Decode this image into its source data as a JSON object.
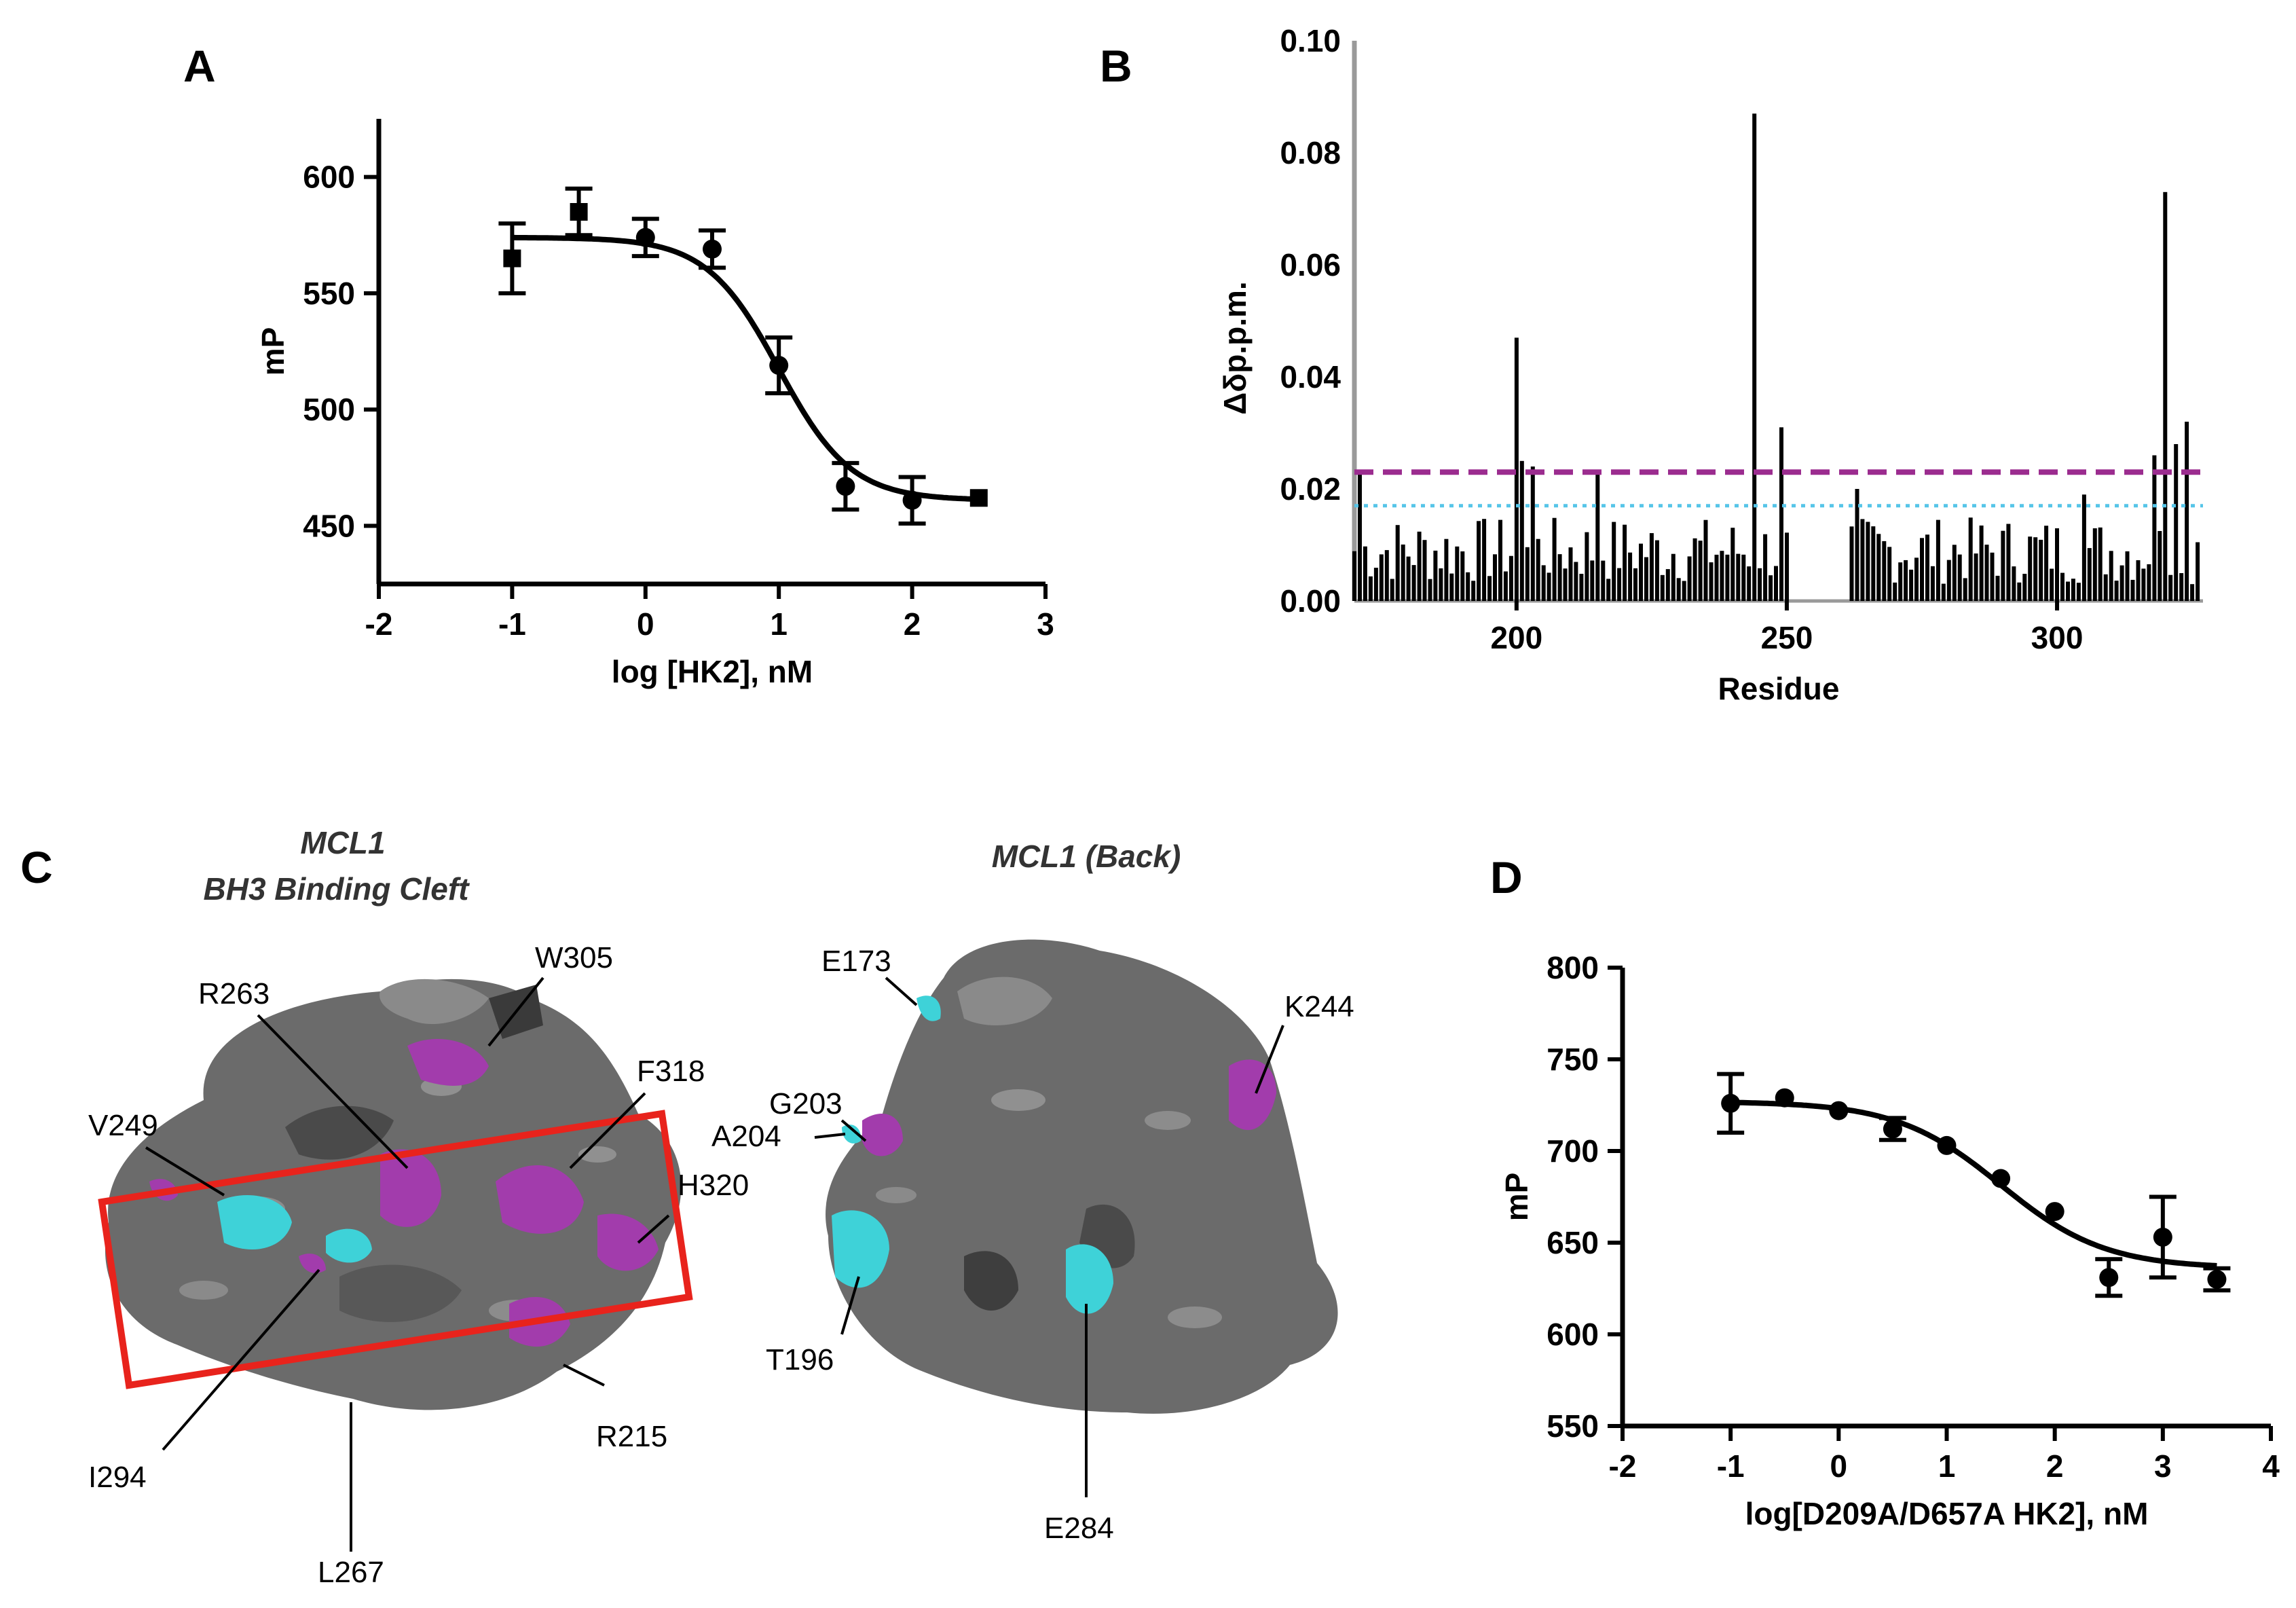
{
  "panels": {
    "A": "A",
    "B": "B",
    "C": "C",
    "D": "D"
  },
  "chart_data": [
    {
      "id": "A",
      "type": "scatter",
      "xlabel": "log [HK2], nM",
      "ylabel": "mP",
      "xlim": [
        -2,
        3
      ],
      "ylim": [
        425,
        625
      ],
      "xticks": [
        -2,
        -1,
        0,
        1,
        2,
        3
      ],
      "yticks": [
        450,
        500,
        550,
        600
      ],
      "points": [
        {
          "x": -1,
          "y": 565,
          "err": 15,
          "marker": "square"
        },
        {
          "x": -0.5,
          "y": 585,
          "err": 10,
          "marker": "square"
        },
        {
          "x": 0,
          "y": 574,
          "err": 8,
          "marker": "circle"
        },
        {
          "x": 0.5,
          "y": 569,
          "err": 8,
          "marker": "circle"
        },
        {
          "x": 1,
          "y": 519,
          "err": 12,
          "marker": "circle"
        },
        {
          "x": 1.5,
          "y": 467,
          "err": 10,
          "marker": "circle"
        },
        {
          "x": 2,
          "y": 461,
          "err": 10,
          "marker": "circle"
        },
        {
          "x": 2.5,
          "y": 462,
          "err": 0,
          "marker": "square"
        }
      ],
      "fit": {
        "top": 574,
        "bottom": 461,
        "logEC50": 1.0,
        "hill": 1.6
      }
    },
    {
      "id": "B",
      "type": "bar",
      "xlabel": "Residue",
      "ylabel": "Δδp.p.m.",
      "xlim": [
        170,
        327
      ],
      "ylim": [
        0,
        0.1
      ],
      "xticks": [
        200,
        250,
        300
      ],
      "yticks": [
        "0.00",
        "0.02",
        "0.04",
        "0.06",
        "0.08",
        "0.10"
      ],
      "threshold_purple": 0.023,
      "threshold_cyan": 0.017,
      "colors": {
        "purple": "#9b2c8f",
        "cyan": "#56c5e8",
        "bar": "#000000"
      },
      "gaps": [
        [
          251,
          261
        ]
      ],
      "peaks": [
        {
          "x": 171,
          "y": 0.023
        },
        {
          "x": 200,
          "y": 0.047
        },
        {
          "x": 201,
          "y": 0.025
        },
        {
          "x": 203,
          "y": 0.024
        },
        {
          "x": 215,
          "y": 0.023
        },
        {
          "x": 244,
          "y": 0.087
        },
        {
          "x": 249,
          "y": 0.031
        },
        {
          "x": 263,
          "y": 0.02
        },
        {
          "x": 305,
          "y": 0.019
        },
        {
          "x": 318,
          "y": 0.026
        },
        {
          "x": 320,
          "y": 0.073
        },
        {
          "x": 322,
          "y": 0.028
        },
        {
          "x": 324,
          "y": 0.032
        }
      ]
    },
    {
      "id": "D",
      "type": "scatter",
      "xlabel": "log[D209A/D657A HK2], nM",
      "ylabel": "mP",
      "xlim": [
        -2,
        4
      ],
      "ylim": [
        550,
        800
      ],
      "xticks": [
        -2,
        -1,
        0,
        1,
        2,
        3,
        4
      ],
      "yticks": [
        550,
        600,
        650,
        700,
        750,
        800
      ],
      "points": [
        {
          "x": -1,
          "y": 726,
          "err": 16
        },
        {
          "x": -0.5,
          "y": 729,
          "err": 0
        },
        {
          "x": 0,
          "y": 722,
          "err": 0
        },
        {
          "x": 0.5,
          "y": 712,
          "err": 6
        },
        {
          "x": 1,
          "y": 703,
          "err": 0
        },
        {
          "x": 1.5,
          "y": 685,
          "err": 0
        },
        {
          "x": 2,
          "y": 667,
          "err": 0
        },
        {
          "x": 2.5,
          "y": 631,
          "err": 10
        },
        {
          "x": 3,
          "y": 653,
          "err": 22
        },
        {
          "x": 3.5,
          "y": 630,
          "err": 6
        }
      ],
      "fit": {
        "top": 727,
        "bottom": 636,
        "logEC50": 1.5,
        "hill": 0.9
      }
    }
  ],
  "panel_c": {
    "left_title_line1": "MCL1",
    "left_title_line2": "BH3 Binding Cleft",
    "right_title": "MCL1 (Back)",
    "left_labels": [
      "R263",
      "W305",
      "F318",
      "V249",
      "H320",
      "R215",
      "I294",
      "L267"
    ],
    "right_labels": [
      "E173",
      "K244",
      "G203",
      "A204",
      "T196",
      "E284"
    ],
    "colors": {
      "surface": "#6b6b6b",
      "surface_dark": "#4a4a4a",
      "magenta": "#a23cac",
      "cyan": "#3ed2d8",
      "box": "#e8231c"
    }
  }
}
